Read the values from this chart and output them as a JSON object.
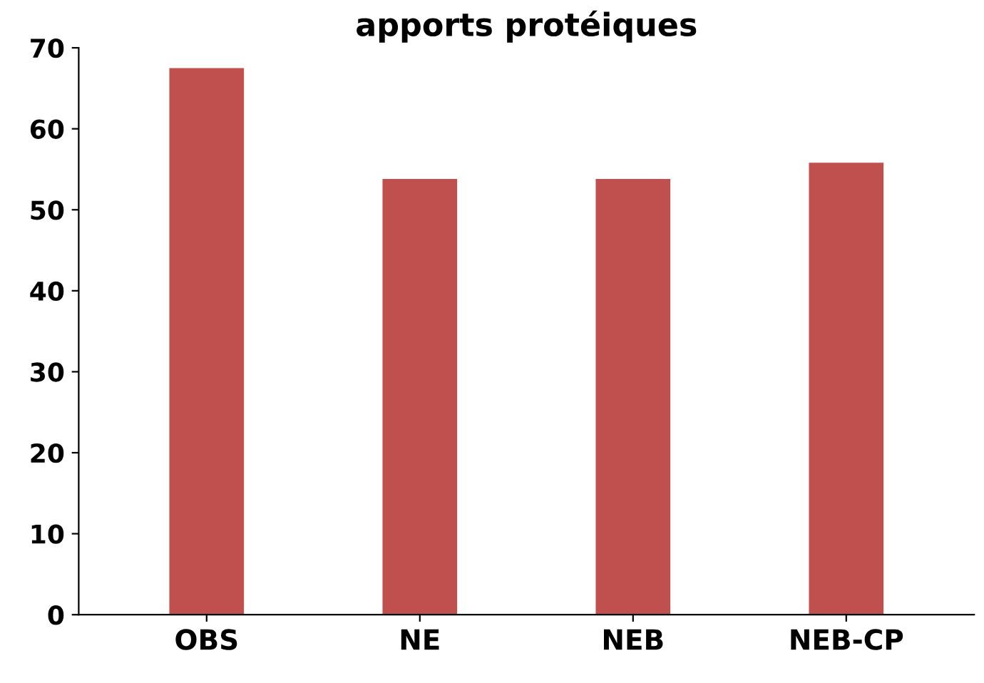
{
  "chart_data": {
    "type": "bar",
    "title": "apports protéiques",
    "categories": [
      "OBS",
      "NE",
      "NEB",
      "NEB-CP"
    ],
    "values": [
      67.5,
      53.8,
      53.8,
      55.8
    ],
    "color": "#c0504d",
    "ylim": [
      0,
      70
    ],
    "yticks": [
      0,
      10,
      20,
      30,
      40,
      50,
      60,
      70
    ],
    "grid": false
  }
}
